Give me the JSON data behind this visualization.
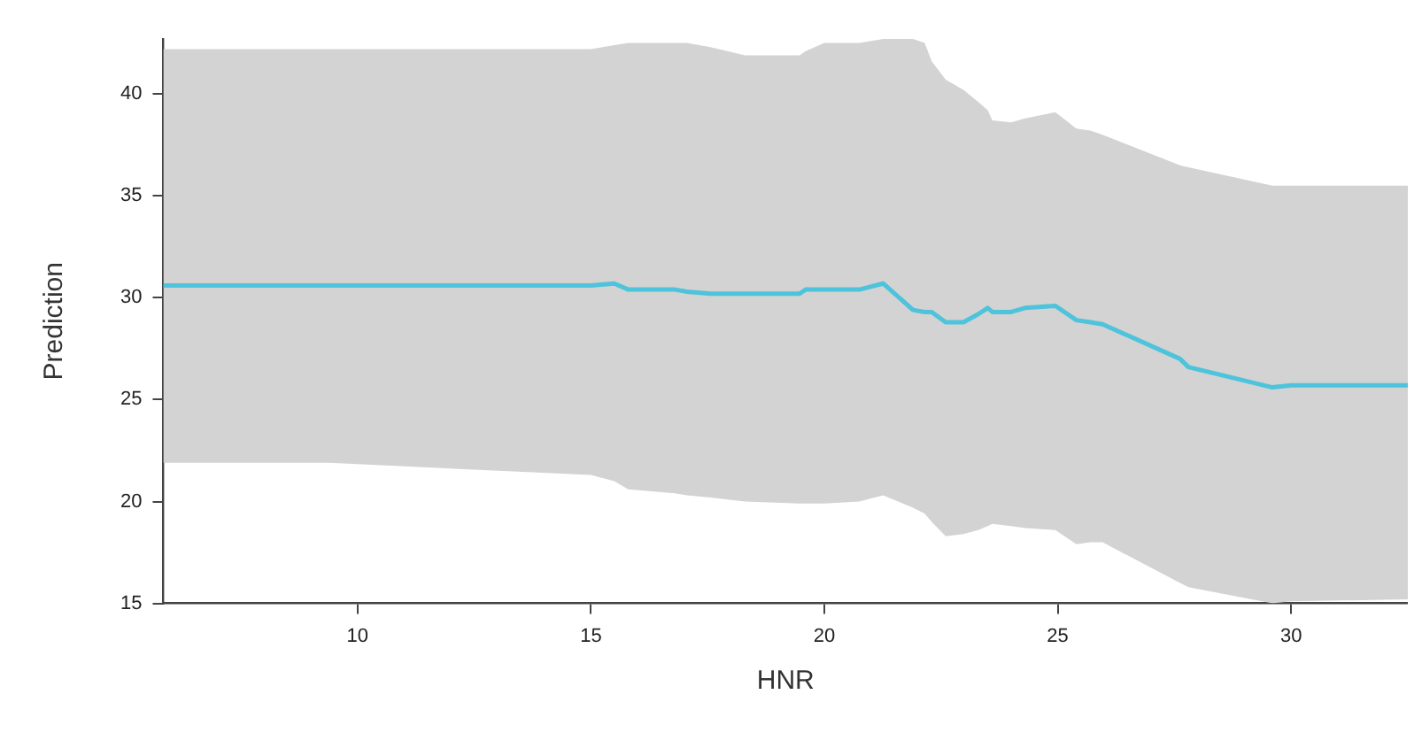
{
  "chart_data": {
    "type": "line",
    "xlabel": "HNR",
    "ylabel": "Prediction",
    "xlim": [
      5.84,
      32.5
    ],
    "xticks": [
      10,
      15,
      20,
      25,
      30
    ],
    "ylim": [
      15,
      42.7
    ],
    "yticks": [
      15,
      20,
      25,
      30,
      35,
      40
    ],
    "grid": false,
    "legend": false,
    "marker": "none",
    "line_style": "solid",
    "series": [
      {
        "color": "#4dc3dc",
        "x": [
          5.84,
          9.4,
          15.0,
          15.5,
          15.8,
          16.8,
          17.06,
          17.56,
          18.3,
          19.47,
          19.6,
          20.0,
          20.75,
          21.26,
          21.9,
          22.15,
          22.3,
          22.6,
          22.98,
          23.3,
          23.5,
          23.6,
          24.0,
          24.3,
          24.95,
          25.4,
          25.7,
          25.96,
          27.62,
          27.8,
          29.6,
          30.0,
          32.5
        ],
        "values": [
          30.6,
          30.6,
          30.6,
          30.7,
          30.4,
          30.4,
          30.3,
          30.2,
          30.2,
          30.2,
          30.4,
          30.4,
          30.4,
          30.7,
          29.4,
          29.3,
          29.3,
          28.8,
          28.8,
          29.2,
          29.5,
          29.3,
          29.3,
          29.5,
          29.6,
          28.9,
          28.8,
          28.7,
          27.0,
          26.6,
          25.6,
          25.7,
          25.7
        ],
        "lower": [
          21.9,
          21.9,
          21.3,
          21.0,
          20.6,
          20.4,
          20.3,
          20.2,
          20.0,
          19.9,
          19.9,
          19.9,
          20.0,
          20.3,
          19.7,
          19.4,
          19.0,
          18.3,
          18.4,
          18.6,
          18.8,
          18.9,
          18.8,
          18.7,
          18.6,
          17.9,
          18.0,
          18.0,
          16.0,
          15.8,
          15.0,
          15.1,
          15.2
        ],
        "upper": [
          42.2,
          42.2,
          42.2,
          42.4,
          42.5,
          42.5,
          42.5,
          42.3,
          41.9,
          41.9,
          42.1,
          42.5,
          42.5,
          42.7,
          42.7,
          42.5,
          41.6,
          40.7,
          40.2,
          39.6,
          39.2,
          38.7,
          38.6,
          38.8,
          39.1,
          38.3,
          38.2,
          38.0,
          36.5,
          36.4,
          35.5,
          35.5,
          35.5
        ]
      }
    ]
  }
}
